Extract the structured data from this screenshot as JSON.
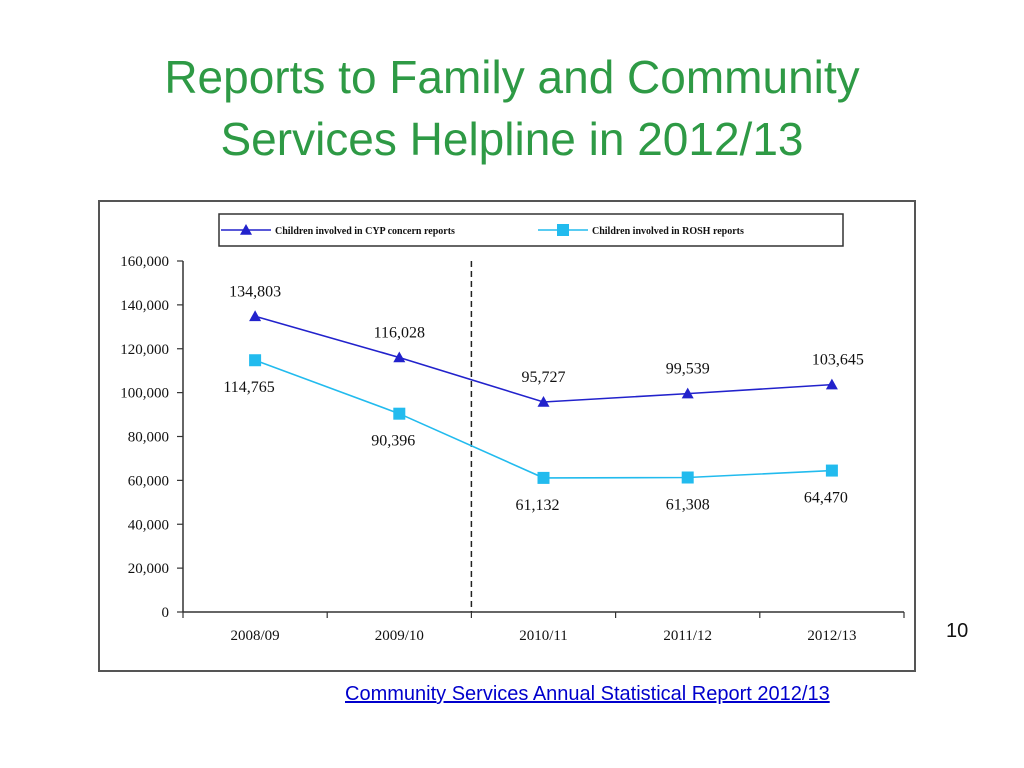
{
  "slide": {
    "title_line1": "Reports to Family and Community",
    "title_line2": "Services Helpline in 2012/13",
    "page_number": "10",
    "source_link": "Community Services Annual Statistical Report 2012/13"
  },
  "chart_data": {
    "type": "line",
    "title": "",
    "xlabel": "",
    "ylabel": "",
    "categories": [
      "2008/09",
      "2009/10",
      "2010/11",
      "2011/12",
      "2012/13"
    ],
    "ylim": [
      0,
      160000
    ],
    "yticks": [
      0,
      20000,
      40000,
      60000,
      80000,
      100000,
      120000,
      140000,
      160000
    ],
    "ytick_labels": [
      "0",
      "20,000",
      "40,000",
      "60,000",
      "80,000",
      "100,000",
      "120,000",
      "140,000",
      "160,000"
    ],
    "grid": false,
    "legend": "top",
    "divider_after_category": "2009/10",
    "series": [
      {
        "name": "Children involved in CYP concern reports",
        "color": "#2222cc",
        "marker": "triangle",
        "values": [
          134803,
          116028,
          95727,
          99539,
          103645
        ],
        "labels": [
          "134,803",
          "116,028",
          "95,727",
          "99,539",
          "103,645"
        ]
      },
      {
        "name": "Children involved in ROSH reports",
        "color": "#22bbee",
        "marker": "square",
        "values": [
          114765,
          90396,
          61132,
          61308,
          64470
        ],
        "labels": [
          "114,765",
          "90,396",
          "61,132",
          "61,308",
          "64,470"
        ]
      }
    ]
  }
}
